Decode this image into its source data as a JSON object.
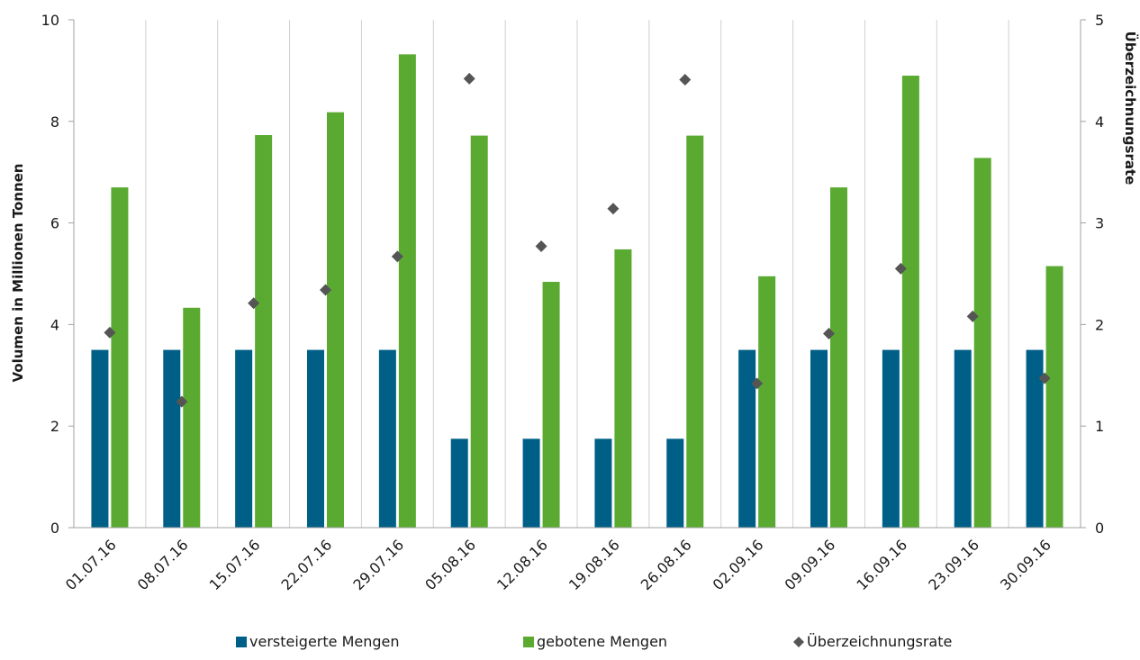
{
  "chart_data": {
    "type": "bar",
    "categories": [
      "01.07.16",
      "08.07.16",
      "15.07.16",
      "22.07.16",
      "29.07.16",
      "05.08.16",
      "12.08.16",
      "19.08.16",
      "26.08.16",
      "02.09.16",
      "09.09.16",
      "16.09.16",
      "23.09.16",
      "30.09.16"
    ],
    "series": [
      {
        "name": "versteigerte Mengen",
        "type": "bar",
        "axis": "left",
        "color": "#005f87",
        "values": [
          3.5,
          3.5,
          3.5,
          3.5,
          3.5,
          1.75,
          1.75,
          1.75,
          1.75,
          3.5,
          3.5,
          3.5,
          3.5,
          3.5
        ]
      },
      {
        "name": "gebotene Mengen",
        "type": "bar",
        "axis": "left",
        "color": "#5aaa32",
        "values": [
          6.7,
          4.33,
          7.73,
          8.18,
          9.32,
          7.72,
          4.84,
          5.48,
          7.72,
          4.95,
          6.7,
          8.9,
          7.28,
          5.15
        ]
      },
      {
        "name": "Überzeichnungsrate",
        "type": "scatter",
        "marker": "diamond",
        "axis": "right",
        "color": "#555555",
        "values": [
          1.92,
          1.24,
          2.21,
          2.34,
          2.67,
          4.42,
          2.77,
          3.14,
          4.41,
          1.42,
          1.91,
          2.55,
          2.08,
          1.47
        ]
      }
    ],
    "ylabel": "Volumen in Millionen Tonnen",
    "y2label": "Überzeichnungsrate",
    "ylim": [
      0,
      10
    ],
    "y2lim": [
      0,
      5
    ],
    "yticks": [
      "0",
      "2",
      "4",
      "6",
      "8",
      "10"
    ],
    "y2ticks": [
      "0",
      "1",
      "2",
      "3",
      "4",
      "5"
    ],
    "grid": "vertical",
    "legend": "bottom"
  }
}
